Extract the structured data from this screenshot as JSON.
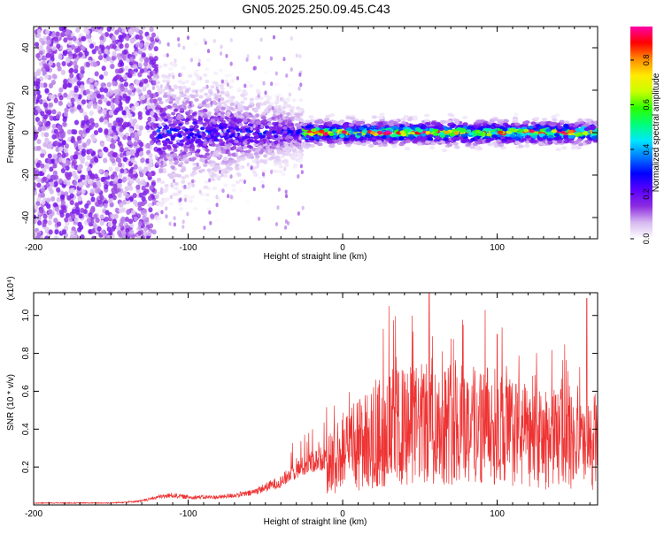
{
  "title": "GN05.2025.250.09.45.C43",
  "colors": {
    "background": "#ffffff",
    "axis": "#000000",
    "snr_line": "#ee3333"
  },
  "chart_data": [
    {
      "type": "heatmap",
      "name": "spectrogram",
      "xlabel": "Height of straight line (km)",
      "ylabel": "Frequency (Hz)",
      "xlim": [
        -200,
        165
      ],
      "ylim": [
        -50,
        50
      ],
      "xticks": [
        -200,
        -100,
        0,
        100
      ],
      "xtick_labels": [
        "-200",
        "-100",
        "0",
        "100"
      ],
      "yticks": [
        -40,
        -20,
        0,
        20,
        40
      ],
      "ytick_labels": [
        "-40",
        "-20",
        "0",
        "20",
        "40"
      ],
      "colorbar": {
        "label": "Normalized spectral amplitude",
        "range": [
          0,
          0.95
        ],
        "ticks": [
          0.0,
          0.2,
          0.4,
          0.6,
          0.8
        ],
        "tick_labels": [
          "0.0",
          "0.2",
          "0.4",
          "0.6",
          "0.8"
        ],
        "colormap": [
          "#ffffff",
          "#d6b8f0",
          "#8c2be0",
          "#5a00ff",
          "#0000ff",
          "#0078ff",
          "#00e6ff",
          "#00ff7a",
          "#2aff00",
          "#c8ff00",
          "#ffea00",
          "#ff8c00",
          "#ff0000",
          "#ff00aa"
        ]
      },
      "regions": [
        {
          "x_range": [
            -200,
            -120
          ],
          "freq_spread_hz": 50,
          "amplitude": 0.12,
          "description": "broadband noise"
        },
        {
          "x_range": [
            -120,
            -25
          ],
          "freq_spread_hz": 8,
          "amplitude": 0.3
        },
        {
          "x_range": [
            -25,
            165
          ],
          "freq_spread_hz": 3,
          "amplitude": 0.9
        }
      ]
    },
    {
      "type": "line",
      "name": "snr",
      "xlabel": "Height of straight line (km)",
      "ylabel": "SNR (10 * v/v)",
      "y_multiplier": "(x10⁴)",
      "xlim": [
        -200,
        165
      ],
      "ylim": [
        0,
        1.12
      ],
      "xticks": [
        -200,
        -100,
        0,
        100
      ],
      "xtick_labels": [
        "-200",
        "-100",
        "0",
        "100"
      ],
      "yticks": [
        0.2,
        0.4,
        0.6,
        0.8,
        1.0
      ],
      "ytick_labels": [
        "0.2",
        "0.4",
        "0.6",
        "0.8",
        "1.0"
      ],
      "envelope": {
        "x": [
          -200,
          -150,
          -130,
          -120,
          -110,
          -100,
          -80,
          -60,
          -40,
          -30,
          -20,
          -10,
          0,
          10,
          20,
          30,
          40,
          50,
          60,
          70,
          80,
          90,
          100,
          110,
          120,
          130,
          140,
          150,
          160,
          165
        ],
        "y": [
          0.01,
          0.01,
          0.02,
          0.04,
          0.05,
          0.04,
          0.04,
          0.06,
          0.12,
          0.18,
          0.22,
          0.25,
          0.32,
          0.38,
          0.42,
          0.48,
          0.48,
          0.5,
          0.5,
          0.52,
          0.5,
          0.5,
          0.48,
          0.45,
          0.42,
          0.4,
          0.42,
          0.38,
          0.35,
          0.42
        ]
      },
      "peaks": [
        {
          "x": 30,
          "y": 1.05
        },
        {
          "x": 56,
          "y": 1.12
        },
        {
          "x": 78,
          "y": 0.95
        },
        {
          "x": 100,
          "y": 0.9
        },
        {
          "x": 158,
          "y": 1.09
        },
        {
          "x": -22,
          "y": 0.38
        },
        {
          "x": 3,
          "y": 0.47
        }
      ]
    }
  ]
}
